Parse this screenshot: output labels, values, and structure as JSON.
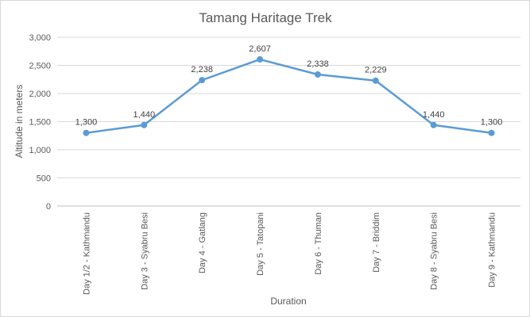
{
  "chart_data": {
    "type": "line",
    "title": "Tamang Haritage Trek",
    "xlabel": "Duration",
    "ylabel": "Altitude in meters",
    "categories": [
      "Day 1/2 - Kathmandu",
      "Day 3 - Syabru Besi",
      "Day 4 - Gatlang",
      "Day 5 - Tatopani",
      "Day 6 - Thuman",
      "Day 7 - Briddim",
      "Day 8 - Syabru Besi",
      "Day 9 - Kathmandu"
    ],
    "series": [
      {
        "values": [
          1300,
          1440,
          2238,
          2607,
          2338,
          2229,
          1440,
          1300
        ],
        "labels": [
          "1,300",
          "1,440",
          "2,238",
          "2,607",
          "2,338",
          "2,229",
          "1,440",
          "1,300"
        ]
      }
    ],
    "ylim": [
      0,
      3000
    ],
    "yticks": [
      0,
      500,
      1000,
      1500,
      2000,
      2500,
      3000
    ],
    "ytick_labels": [
      "0",
      "500",
      "1,000",
      "1,500",
      "2,000",
      "2,500",
      "3,000"
    ],
    "grid": true,
    "legend": "none",
    "line_color": "#5b9bd5"
  }
}
